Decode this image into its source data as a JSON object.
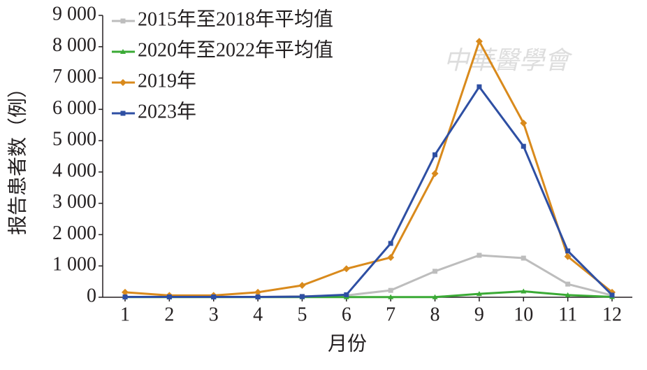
{
  "chart_data": {
    "type": "line",
    "y_label": "报告患者数（例）",
    "x_label": "月份",
    "watermark": "中華醫學會",
    "categories": [
      "1",
      "2",
      "3",
      "4",
      "5",
      "6",
      "7",
      "8",
      "9",
      "10",
      "11",
      "12"
    ],
    "ylim": [
      0,
      9000
    ],
    "yticks": [
      0,
      {
        "value": 1000,
        "label": "1 000"
      },
      {
        "value": 2000,
        "label": "2 000"
      },
      {
        "value": 3000,
        "label": "3 000"
      },
      {
        "value": 4000,
        "label": "4 000"
      },
      {
        "value": 5000,
        "label": "5 000"
      },
      {
        "value": 6000,
        "label": "6 000"
      },
      {
        "value": 7000,
        "label": "7 000"
      },
      {
        "value": 8000,
        "label": "8 000"
      },
      {
        "value": 9000,
        "label": "9 000"
      }
    ],
    "legend": "upper left",
    "series": [
      {
        "name": "2015年至2018年平均值",
        "color": "#bdbdbd",
        "marker": "square",
        "values": [
          10,
          10,
          10,
          10,
          30,
          60,
          220,
          830,
          1340,
          1250,
          420,
          60
        ]
      },
      {
        "name": "2020年至2022年平均值",
        "color": "#3aaa35",
        "marker": "triangle",
        "values": [
          5,
          5,
          5,
          5,
          5,
          5,
          5,
          5,
          110,
          190,
          70,
          10
        ]
      },
      {
        "name": "2019年",
        "color": "#d98a1c",
        "marker": "diamond",
        "values": [
          160,
          60,
          60,
          160,
          380,
          910,
          1270,
          3950,
          8170,
          5560,
          1300,
          160
        ]
      },
      {
        "name": "2023年",
        "color": "#2e4fa3",
        "marker": "square",
        "values": [
          10,
          10,
          10,
          10,
          20,
          80,
          1720,
          4550,
          6720,
          4820,
          1480,
          70
        ]
      }
    ]
  }
}
